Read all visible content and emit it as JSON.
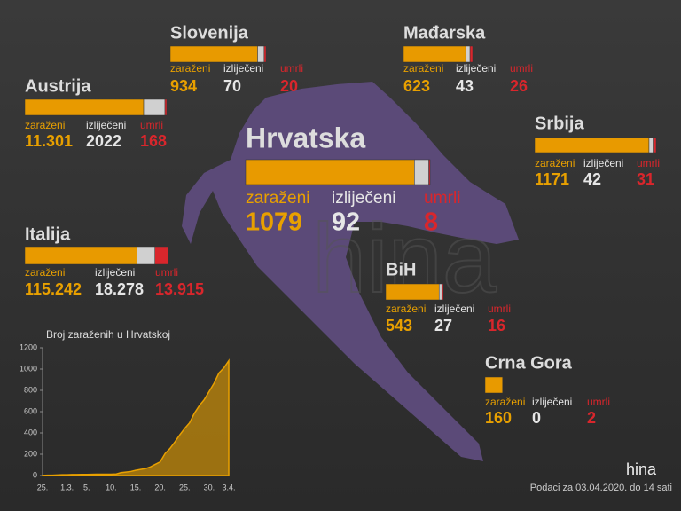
{
  "countries": [
    {
      "name": "Slovenija",
      "stats": [
        {
          "label": "zaraženi",
          "value": 934
        },
        {
          "label": "izliječeni",
          "value": 70
        },
        {
          "label": "umrli",
          "value": 20
        }
      ]
    },
    {
      "name": "Mađarska",
      "stats": [
        {
          "label": "zaraženi",
          "value": 623
        },
        {
          "label": "izliječeni",
          "value": 43
        },
        {
          "label": "umrli",
          "value": 26
        }
      ]
    },
    {
      "name": "Austrija",
      "stats": [
        {
          "label": "zaraženi",
          "value": 11301,
          "value_label": "11.301"
        },
        {
          "label": "izliječeni",
          "value": 2022
        },
        {
          "label": "umrli",
          "value": 168
        }
      ]
    },
    {
      "name": "Hrvatska",
      "stats": [
        {
          "label": "zaraženi",
          "value": 1079
        },
        {
          "label": "izliječeni",
          "value": 92
        },
        {
          "label": "umrli",
          "value": 8
        }
      ]
    },
    {
      "name": "Srbija",
      "stats": [
        {
          "label": "zaraženi",
          "value": 1171
        },
        {
          "label": "izliječeni",
          "value": 42
        },
        {
          "label": "umrli",
          "value": 31
        }
      ]
    },
    {
      "name": "Italija",
      "stats": [
        {
          "label": "zaraženi",
          "value": 115242,
          "value_label": "115.242"
        },
        {
          "label": "izliječeni",
          "value": 18278,
          "value_label": "18.278"
        },
        {
          "label": "umrli",
          "value": 13915,
          "value_label": "13.915"
        }
      ]
    },
    {
      "name": "BiH",
      "stats": [
        {
          "label": "zaraženi",
          "value": 543
        },
        {
          "label": "izliječeni",
          "value": 27
        },
        {
          "label": "umrli",
          "value": 16
        }
      ]
    },
    {
      "name": "Crna Gora",
      "stats": [
        {
          "label": "zaraženi",
          "value": 160
        },
        {
          "label": "izliječeni",
          "value": 0
        },
        {
          "label": "umrli",
          "value": 2
        }
      ]
    }
  ],
  "chart_data": {
    "type": "area",
    "title": "Broj zaraženih u Hrvatskoj",
    "categories": [
      "25.",
      null,
      null,
      null,
      null,
      "1.3.",
      null,
      null,
      null,
      "5.",
      null,
      null,
      null,
      null,
      "10.",
      null,
      null,
      null,
      null,
      "15.",
      null,
      null,
      null,
      null,
      "20.",
      null,
      null,
      null,
      null,
      "25.",
      null,
      null,
      null,
      null,
      "30.",
      null,
      null,
      null,
      "3.4."
    ],
    "values": [
      1,
      3,
      3,
      5,
      7,
      7,
      9,
      9,
      10,
      10,
      11,
      12,
      12,
      12,
      13,
      14,
      27,
      32,
      38,
      49,
      57,
      65,
      81,
      105,
      128,
      206,
      254,
      315,
      382,
      442,
      495,
      586,
      657,
      713,
      790,
      867,
      963,
      1011,
      1079
    ],
    "color": "#e8a000",
    "ylim": [
      0,
      1200
    ],
    "yticks": [
      0,
      200,
      400,
      600,
      800,
      1000,
      1200
    ]
  },
  "footer": "Podaci za 03.04.2020. do 14 sati",
  "logo": "hina"
}
